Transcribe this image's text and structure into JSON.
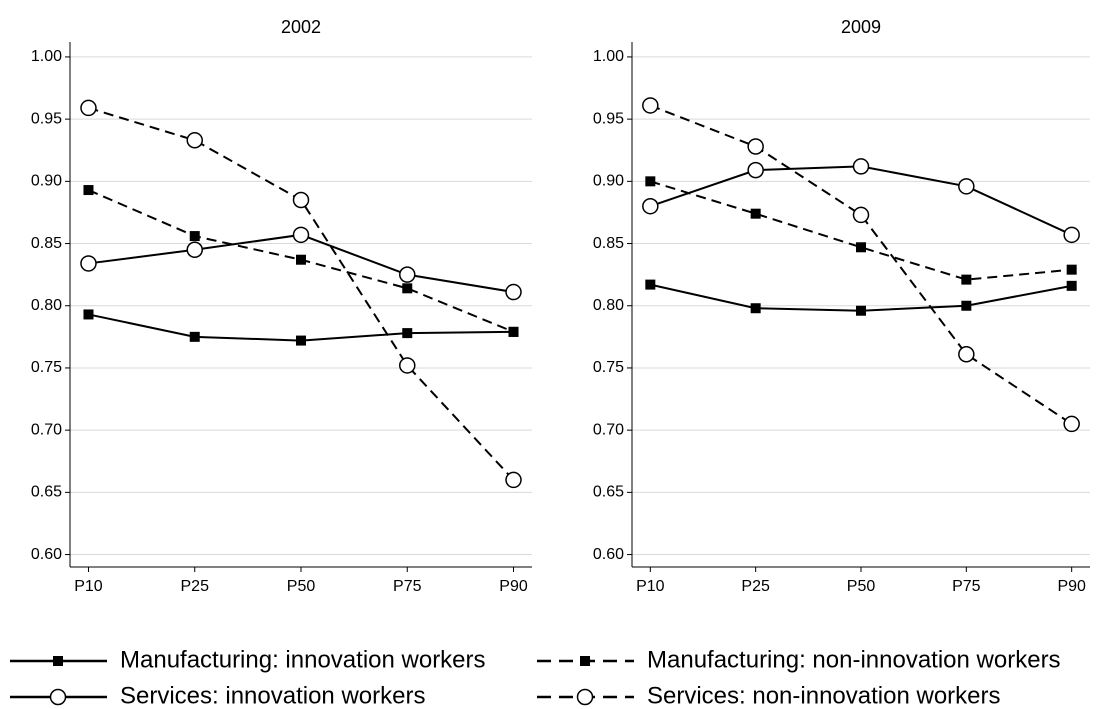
{
  "chart_data": [
    {
      "type": "line",
      "title": "2002",
      "categories": [
        "P10",
        "P25",
        "P50",
        "P75",
        "P90"
      ],
      "ylim": [
        0.59,
        1.012
      ],
      "yticks": [
        {
          "value": 1.0,
          "label": "1.00"
        },
        {
          "value": 0.95,
          "label": "0.95"
        },
        {
          "value": 0.9,
          "label": "0.90"
        },
        {
          "value": 0.85,
          "label": "0.85"
        },
        {
          "value": 0.8,
          "label": "0.80"
        },
        {
          "value": 0.75,
          "label": "0.75"
        },
        {
          "value": 0.7,
          "label": "0.70"
        },
        {
          "value": 0.65,
          "label": "0.65"
        },
        {
          "value": 0.6,
          "label": "0.60"
        }
      ],
      "grid": true,
      "series": [
        {
          "name": "Manufacturing: innovation workers",
          "color": "#000000",
          "marker": "square",
          "dash": "solid",
          "values": [
            0.793,
            0.775,
            0.772,
            0.778,
            0.779
          ]
        },
        {
          "name": "Manufacturing: non-innovation workers",
          "color": "#000000",
          "marker": "square",
          "dash": "dashed",
          "values": [
            0.893,
            0.856,
            0.837,
            0.814,
            0.779
          ]
        },
        {
          "name": "Services: innovation workers",
          "color": "#000000",
          "marker": "circle",
          "dash": "solid",
          "values": [
            0.834,
            0.845,
            0.857,
            0.825,
            0.811
          ]
        },
        {
          "name": "Services: non-innovation workers",
          "color": "#000000",
          "marker": "circle",
          "dash": "dashed",
          "values": [
            0.959,
            0.933,
            0.885,
            0.752,
            0.66
          ]
        }
      ]
    },
    {
      "type": "line",
      "title": "2009",
      "categories": [
        "P10",
        "P25",
        "P50",
        "P75",
        "P90"
      ],
      "ylim": [
        0.59,
        1.012
      ],
      "yticks": [
        {
          "value": 1.0,
          "label": "1.00"
        },
        {
          "value": 0.95,
          "label": "0.95"
        },
        {
          "value": 0.9,
          "label": "0.90"
        },
        {
          "value": 0.85,
          "label": "0.85"
        },
        {
          "value": 0.8,
          "label": "0.80"
        },
        {
          "value": 0.75,
          "label": "0.75"
        },
        {
          "value": 0.7,
          "label": "0.70"
        },
        {
          "value": 0.65,
          "label": "0.65"
        },
        {
          "value": 0.6,
          "label": "0.60"
        }
      ],
      "grid": true,
      "series": [
        {
          "color": "#000000",
          "marker": "square",
          "dash": "solid",
          "values": [
            0.817,
            0.798,
            0.796,
            0.8,
            0.816
          ]
        },
        {
          "color": "#000000",
          "marker": "square",
          "dash": "dashed",
          "values": [
            0.9,
            0.874,
            0.847,
            0.821,
            0.829
          ]
        },
        {
          "color": "#000000",
          "marker": "circle",
          "dash": "solid",
          "values": [
            0.88,
            0.909,
            0.912,
            0.896,
            0.857
          ]
        },
        {
          "color": "#000000",
          "marker": "circle",
          "dash": "dashed",
          "values": [
            0.961,
            0.928,
            0.873,
            0.761,
            0.705
          ]
        }
      ]
    }
  ]
}
